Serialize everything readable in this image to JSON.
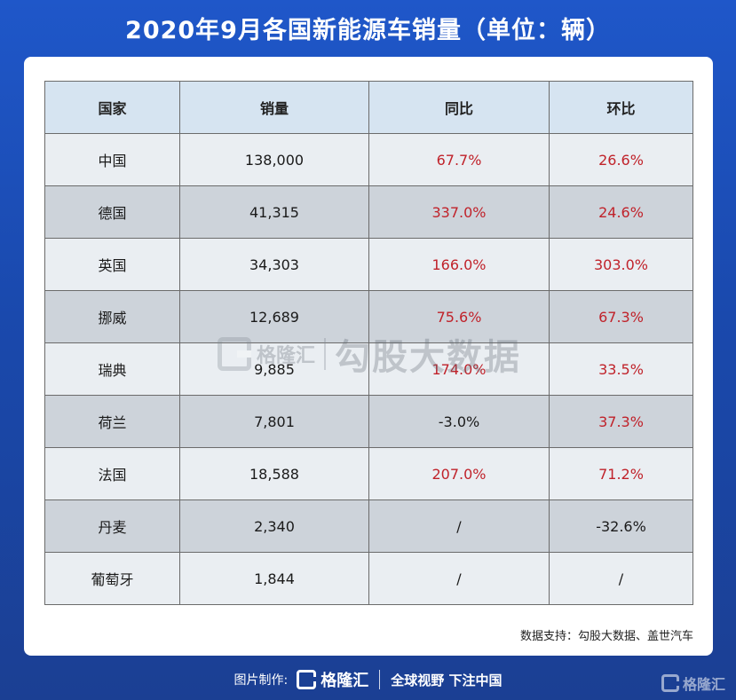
{
  "title": "2020年9月各国新能源车销量（单位：辆）",
  "table": {
    "headers": [
      "国家",
      "销量",
      "同比",
      "环比"
    ],
    "rows": [
      {
        "country": "中国",
        "sales": "138,000",
        "yoy": "67.7%",
        "mom": "26.6%"
      },
      {
        "country": "德国",
        "sales": "41,315",
        "yoy": "337.0%",
        "mom": "24.6%"
      },
      {
        "country": "英国",
        "sales": "34,303",
        "yoy": "166.0%",
        "mom": "303.0%"
      },
      {
        "country": "挪威",
        "sales": "12,689",
        "yoy": "75.6%",
        "mom": "67.3%"
      },
      {
        "country": "瑞典",
        "sales": "9,885",
        "yoy": "174.0%",
        "mom": "33.5%"
      },
      {
        "country": "荷兰",
        "sales": "7,801",
        "yoy": "-3.0%",
        "mom": "37.3%"
      },
      {
        "country": "法国",
        "sales": "18,588",
        "yoy": "207.0%",
        "mom": "71.2%"
      },
      {
        "country": "丹麦",
        "sales": "2,340",
        "yoy": "/",
        "mom": "-32.6%"
      },
      {
        "country": "葡萄牙",
        "sales": "1,844",
        "yoy": "/",
        "mom": "/"
      }
    ]
  },
  "watermark": {
    "brand": "格隆汇",
    "text": "勾股大数据"
  },
  "source": "数据支持：勾股大数据、盖世汽车",
  "footer": {
    "credit": "图片制作:",
    "brand": "格隆汇",
    "slogan": "全球视野 下注中国",
    "corner_brand": "格隆汇"
  },
  "colors": {
    "positive": "#c0222a",
    "header_bg": "#d6e4f1",
    "background": "#1f57c9"
  },
  "icons": {
    "logo": "gelonghui-g-logo-icon"
  }
}
